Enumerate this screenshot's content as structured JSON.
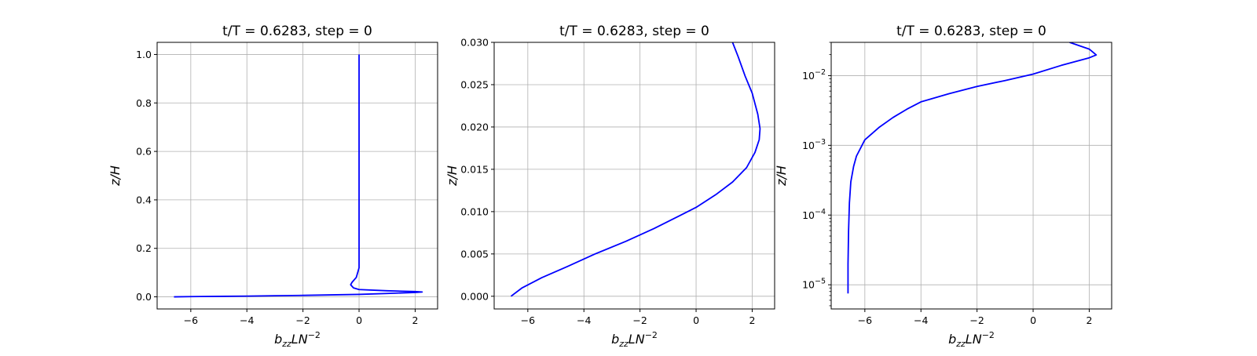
{
  "chart_data": [
    {
      "type": "line",
      "title": "t/T = 0.6283, step = 0",
      "xlabel": "b_zz L N^-2",
      "ylabel": "z/H",
      "xlim": [
        -7.2,
        2.8
      ],
      "ylim": [
        -0.05,
        1.05
      ],
      "yscale": "linear",
      "xticks": [
        -6,
        -4,
        -2,
        0,
        2
      ],
      "xtick_labels": [
        "−6",
        "−4",
        "−2",
        "0",
        "2"
      ],
      "yticks": [
        0.0,
        0.2,
        0.4,
        0.6,
        0.8,
        1.0
      ],
      "ytick_labels": [
        "0.0",
        "0.2",
        "0.4",
        "0.6",
        "0.8",
        "1.0"
      ],
      "grid": true,
      "series": [
        {
          "color": "#0000ff",
          "x": [
            -6.6,
            -6.0,
            -5.0,
            -4.0,
            -3.0,
            -2.0,
            -1.0,
            0.0,
            1.0,
            2.0,
            2.25,
            2.0,
            1.0,
            0.0,
            -0.2,
            -0.3,
            -0.25,
            -0.1,
            0.0,
            0.0,
            0.0
          ],
          "y": [
            0.0,
            0.001,
            0.002,
            0.003,
            0.0045,
            0.006,
            0.008,
            0.01,
            0.014,
            0.018,
            0.02,
            0.022,
            0.025,
            0.03,
            0.037,
            0.05,
            0.06,
            0.08,
            0.12,
            0.5,
            1.0
          ]
        }
      ]
    },
    {
      "type": "line",
      "title": "t/T = 0.6283, step = 0",
      "xlabel": "b_zz L N^-2",
      "ylabel": "z/H",
      "xlim": [
        -7.2,
        2.8
      ],
      "ylim": [
        -0.0015,
        0.03
      ],
      "yscale": "linear",
      "xticks": [
        -6,
        -4,
        -2,
        0,
        2
      ],
      "xtick_labels": [
        "−6",
        "−4",
        "−2",
        "0",
        "2"
      ],
      "yticks": [
        0.0,
        0.005,
        0.01,
        0.015,
        0.02,
        0.025,
        0.03
      ],
      "ytick_labels": [
        "0.000",
        "0.005",
        "0.010",
        "0.015",
        "0.020",
        "0.025",
        "0.030"
      ],
      "grid": true,
      "series": [
        {
          "color": "#0000ff",
          "x": [
            -6.6,
            -6.2,
            -5.5,
            -4.6,
            -3.6,
            -2.5,
            -1.5,
            -0.6,
            0.0,
            0.7,
            1.3,
            1.8,
            2.1,
            2.25,
            2.28,
            2.2,
            2.0,
            1.75,
            1.5,
            1.3
          ],
          "y": [
            0.0,
            0.001,
            0.0022,
            0.0035,
            0.005,
            0.0065,
            0.008,
            0.0095,
            0.0105,
            0.012,
            0.0135,
            0.0152,
            0.017,
            0.0185,
            0.0198,
            0.0215,
            0.024,
            0.026,
            0.0283,
            0.03
          ]
        }
      ]
    },
    {
      "type": "line",
      "title": "t/T = 0.6283, step = 0",
      "xlabel": "b_zz L N^-2",
      "ylabel": "z/H",
      "xlim": [
        -7.2,
        2.8
      ],
      "ylim": [
        4.5e-06,
        0.03
      ],
      "yscale": "log",
      "xticks": [
        -6,
        -4,
        -2,
        0,
        2
      ],
      "xtick_labels": [
        "−6",
        "−4",
        "−2",
        "0",
        "2"
      ],
      "yticks": [
        1e-05,
        0.0001,
        0.001,
        0.01
      ],
      "ytick_labels": [
        "10^-5",
        "10^-4",
        "10^-3",
        "10^-2"
      ],
      "grid": true,
      "series": [
        {
          "color": "#0000ff",
          "x": [
            -6.6,
            -6.6,
            -6.58,
            -6.55,
            -6.5,
            -6.4,
            -6.3,
            -6.0,
            -5.5,
            -5.0,
            -4.5,
            -4.0,
            -3.0,
            -2.0,
            -1.0,
            0.0,
            1.0,
            2.0,
            2.25,
            2.0,
            1.3
          ],
          "y": [
            7.5e-06,
            2e-05,
            6e-05,
            0.00015,
            0.0003,
            0.0005,
            0.0007,
            0.0012,
            0.0018,
            0.0025,
            0.0033,
            0.0042,
            0.0055,
            0.007,
            0.0085,
            0.0105,
            0.014,
            0.018,
            0.0198,
            0.024,
            0.03
          ]
        }
      ]
    }
  ]
}
